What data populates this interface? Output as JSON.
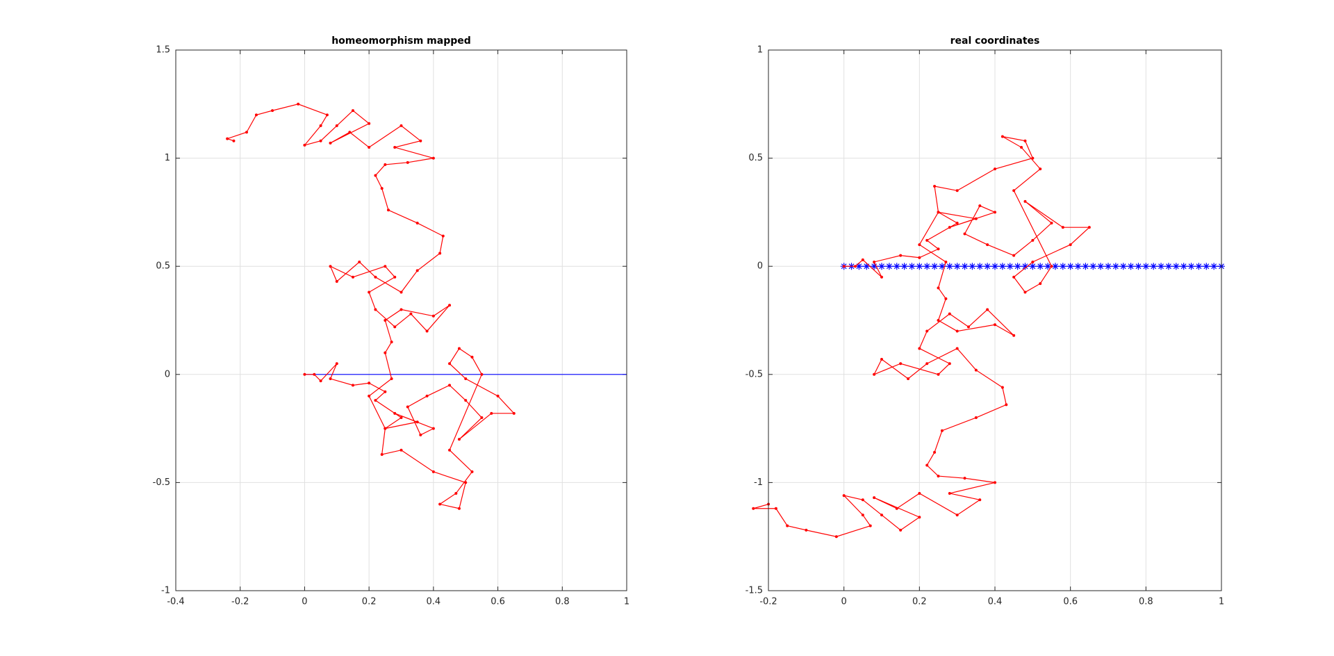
{
  "chart_data": [
    {
      "type": "line",
      "title": "homeomorphism mapped",
      "xlim": [
        -0.4,
        1
      ],
      "ylim": [
        -1,
        1.5
      ],
      "xticks": [
        -0.4,
        -0.2,
        0,
        0.2,
        0.4,
        0.6,
        0.8,
        1
      ],
      "yticks": [
        -1,
        -0.5,
        0,
        0.5,
        1,
        1.5
      ],
      "grid": true,
      "series": [
        {
          "color": "#0000ff",
          "marker": "none",
          "x": [
            0,
            1
          ],
          "values": [
            0,
            0
          ]
        },
        {
          "color": "#ff0000",
          "marker": "dot",
          "x": [
            0,
            0.03,
            0.05,
            0.1,
            0.08,
            0.15,
            0.2,
            0.25,
            0.22,
            0.3,
            0.25,
            0.35,
            0.28,
            0.4,
            0.36,
            0.32,
            0.38,
            0.45,
            0.5,
            0.55,
            0.48,
            0.58,
            0.65,
            0.6,
            0.5,
            0.45,
            0.48,
            0.52,
            0.55,
            0.45,
            0.52,
            0.47,
            0.42,
            0.48,
            0.5,
            0.4,
            0.3,
            0.24,
            0.25,
            0.2,
            0.27,
            0.25,
            0.27,
            0.25,
            0.3,
            0.4,
            0.45,
            0.38,
            0.33,
            0.28,
            0.22,
            0.2,
            0.28,
            0.25,
            0.15,
            0.08,
            0.1,
            0.17,
            0.22,
            0.3,
            0.35,
            0.42,
            0.43,
            0.35,
            0.26,
            0.24,
            0.22,
            0.25,
            0.32,
            0.4,
            0.28,
            0.36,
            0.3,
            0.2,
            0.14,
            0.08,
            0.2,
            0.15,
            0.1,
            0.05,
            0,
            0.05,
            0.07,
            -0.02,
            -0.1,
            -0.15,
            -0.18,
            -0.24,
            -0.22
          ],
          "values": [
            0,
            0,
            -0.03,
            0.05,
            -0.02,
            -0.05,
            -0.04,
            -0.08,
            -0.12,
            -0.2,
            -0.25,
            -0.22,
            -0.18,
            -0.25,
            -0.28,
            -0.15,
            -0.1,
            -0.05,
            -0.12,
            -0.2,
            -0.3,
            -0.18,
            -0.18,
            -0.1,
            -0.02,
            0.05,
            0.12,
            0.08,
            0,
            -0.35,
            -0.45,
            -0.55,
            -0.6,
            -0.62,
            -0.5,
            -0.45,
            -0.35,
            -0.37,
            -0.25,
            -0.1,
            -0.02,
            0.1,
            0.15,
            0.25,
            0.3,
            0.27,
            0.32,
            0.2,
            0.28,
            0.22,
            0.3,
            0.38,
            0.45,
            0.5,
            0.45,
            0.5,
            0.43,
            0.52,
            0.45,
            0.38,
            0.48,
            0.56,
            0.64,
            0.7,
            0.76,
            0.86,
            0.92,
            0.97,
            0.98,
            1.0,
            1.05,
            1.08,
            1.15,
            1.05,
            1.12,
            1.07,
            1.16,
            1.22,
            1.15,
            1.08,
            1.06,
            1.15,
            1.2,
            1.25,
            1.22,
            1.2,
            1.12,
            1.09,
            1.08
          ]
        }
      ]
    },
    {
      "type": "line",
      "title": "real coordinates",
      "xlim": [
        -0.2,
        1
      ],
      "ylim": [
        -1.5,
        1
      ],
      "xticks": [
        -0.2,
        0,
        0.2,
        0.4,
        0.6,
        0.8,
        1
      ],
      "yticks": [
        -1.5,
        -1,
        -0.5,
        0,
        0.5,
        1
      ],
      "grid": true,
      "series": [
        {
          "color": "#0000ff",
          "marker": "star",
          "x": [
            0,
            0.02,
            0.04,
            0.06,
            0.08,
            0.1,
            0.12,
            0.14,
            0.16,
            0.18,
            0.2,
            0.22,
            0.24,
            0.26,
            0.28,
            0.3,
            0.32,
            0.34,
            0.36,
            0.38,
            0.4,
            0.42,
            0.44,
            0.46,
            0.48,
            0.5,
            0.52,
            0.54,
            0.56,
            0.58,
            0.6,
            0.62,
            0.64,
            0.66,
            0.68,
            0.7,
            0.72,
            0.74,
            0.76,
            0.78,
            0.8,
            0.82,
            0.84,
            0.86,
            0.88,
            0.9,
            0.92,
            0.94,
            0.96,
            0.98,
            1
          ],
          "values": [
            0,
            0,
            0,
            0,
            0,
            0,
            0,
            0,
            0,
            0,
            0,
            0,
            0,
            0,
            0,
            0,
            0,
            0,
            0,
            0,
            0,
            0,
            0,
            0,
            0,
            0,
            0,
            0,
            0,
            0,
            0,
            0,
            0,
            0,
            0,
            0,
            0,
            0,
            0,
            0,
            0,
            0,
            0,
            0,
            0,
            0,
            0,
            0,
            0,
            0,
            0
          ]
        },
        {
          "color": "#ff0000",
          "marker": "dot",
          "x": [
            0,
            0.03,
            0.05,
            0.1,
            0.08,
            0.15,
            0.2,
            0.25,
            0.22,
            0.3,
            0.25,
            0.35,
            0.28,
            0.4,
            0.36,
            0.32,
            0.38,
            0.45,
            0.5,
            0.55,
            0.48,
            0.58,
            0.65,
            0.6,
            0.5,
            0.45,
            0.48,
            0.52,
            0.55,
            0.45,
            0.52,
            0.47,
            0.42,
            0.48,
            0.5,
            0.4,
            0.3,
            0.24,
            0.25,
            0.2,
            0.27,
            0.25,
            0.27,
            0.25,
            0.3,
            0.4,
            0.45,
            0.38,
            0.33,
            0.28,
            0.22,
            0.2,
            0.28,
            0.25,
            0.15,
            0.08,
            0.1,
            0.17,
            0.22,
            0.3,
            0.35,
            0.42,
            0.43,
            0.35,
            0.26,
            0.24,
            0.22,
            0.25,
            0.32,
            0.4,
            0.28,
            0.36,
            0.3,
            0.2,
            0.14,
            0.08,
            0.2,
            0.15,
            0.1,
            0.05,
            0,
            0.05,
            0.07,
            -0.02,
            -0.1,
            -0.15,
            -0.18,
            -0.24,
            -0.2
          ],
          "values": [
            0,
            0,
            0.03,
            -0.05,
            0.02,
            0.05,
            0.04,
            0.08,
            0.12,
            0.2,
            0.25,
            0.22,
            0.18,
            0.25,
            0.28,
            0.15,
            0.1,
            0.05,
            0.12,
            0.2,
            0.3,
            0.18,
            0.18,
            0.1,
            0.02,
            -0.05,
            -0.12,
            -0.08,
            0,
            0.35,
            0.45,
            0.55,
            0.6,
            0.58,
            0.5,
            0.45,
            0.35,
            0.37,
            0.25,
            0.1,
            0.02,
            -0.1,
            -0.15,
            -0.25,
            -0.3,
            -0.27,
            -0.32,
            -0.2,
            -0.28,
            -0.22,
            -0.3,
            -0.38,
            -0.45,
            -0.5,
            -0.45,
            -0.5,
            -0.43,
            -0.52,
            -0.45,
            -0.38,
            -0.48,
            -0.56,
            -0.64,
            -0.7,
            -0.76,
            -0.86,
            -0.92,
            -0.97,
            -0.98,
            -1.0,
            -1.05,
            -1.08,
            -1.15,
            -1.05,
            -1.12,
            -1.07,
            -1.16,
            -1.22,
            -1.15,
            -1.08,
            -1.06,
            -1.15,
            -1.2,
            -1.25,
            -1.22,
            -1.2,
            -1.12,
            -1.12,
            -1.1
          ]
        }
      ]
    }
  ]
}
